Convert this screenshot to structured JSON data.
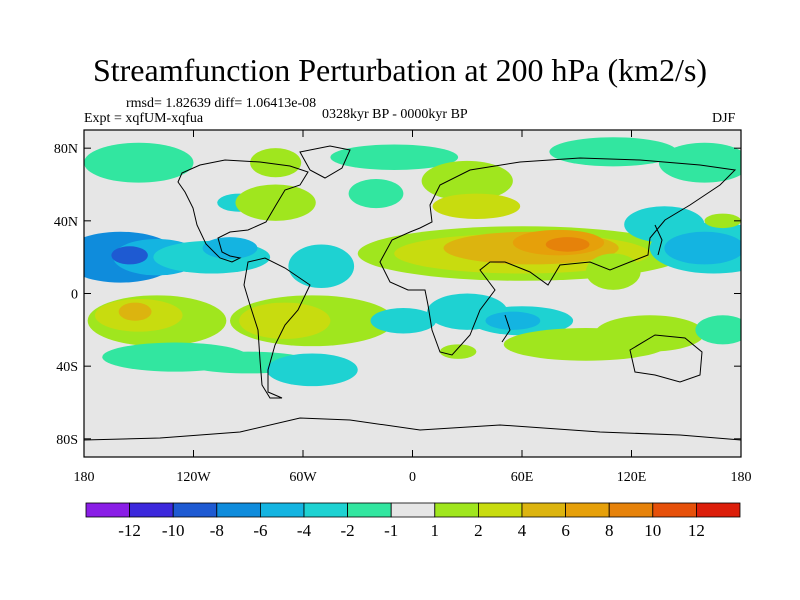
{
  "header": {
    "title": "Streamfunction Perturbation at 200 hPa (km2/s)",
    "stats": "rmsd= 1.82639 diff= 1.06413e-08",
    "experiment": "Expt = xqfUM-xqfua",
    "period": "0328kyr BP - 0000kyr BP",
    "season": "DJF"
  },
  "axes": {
    "y_ticks": [
      {
        "lat": 80,
        "label": "80N"
      },
      {
        "lat": 40,
        "label": "40N"
      },
      {
        "lat": 0,
        "label": "0"
      },
      {
        "lat": -40,
        "label": "40S"
      },
      {
        "lat": -80,
        "label": "80S"
      }
    ],
    "x_ticks": [
      {
        "lon": -180,
        "label": "180"
      },
      {
        "lon": -120,
        "label": "120W"
      },
      {
        "lon": -60,
        "label": "60W"
      },
      {
        "lon": 0,
        "label": "0"
      },
      {
        "lon": 60,
        "label": "60E"
      },
      {
        "lon": 120,
        "label": "120E"
      },
      {
        "lon": 180,
        "label": "180"
      }
    ],
    "lat_range": [
      -90,
      90
    ],
    "lon_range": [
      -180,
      180
    ]
  },
  "colorbar": {
    "colors": [
      "#8a1ee6",
      "#3c28dc",
      "#1e5ad2",
      "#0f8cdc",
      "#14b4e1",
      "#1ed2d2",
      "#32e6a0",
      "#e6e6e6",
      "#a0e61e",
      "#c8dc0f",
      "#dcb40f",
      "#e6a00a",
      "#e6820a",
      "#e6500a",
      "#dc1e0a"
    ],
    "labels": [
      "-12",
      "-10",
      "-8",
      "-6",
      "-4",
      "-2",
      "-1",
      "1",
      "2",
      "4",
      "6",
      "8",
      "10",
      "12"
    ]
  },
  "field": [
    {
      "lon": -160,
      "lat": 20,
      "rx": 32,
      "ry": 14,
      "level": 3
    },
    {
      "lon": -140,
      "lat": 20,
      "rx": 24,
      "ry": 10,
      "level": 4
    },
    {
      "lon": -155,
      "lat": 21,
      "rx": 10,
      "ry": 5,
      "level": 2
    },
    {
      "lon": -110,
      "lat": 20,
      "rx": 32,
      "ry": 9,
      "level": 5
    },
    {
      "lon": -100,
      "lat": 25,
      "rx": 15,
      "ry": 6,
      "level": 4
    },
    {
      "lon": -50,
      "lat": 15,
      "rx": 18,
      "ry": 12,
      "level": 5
    },
    {
      "lon": -140,
      "lat": -15,
      "rx": 38,
      "ry": 14,
      "level": 8
    },
    {
      "lon": -150,
      "lat": -12,
      "rx": 24,
      "ry": 9,
      "level": 9
    },
    {
      "lon": -152,
      "lat": -10,
      "rx": 9,
      "ry": 5,
      "level": 10
    },
    {
      "lon": -55,
      "lat": -15,
      "rx": 45,
      "ry": 14,
      "level": 8
    },
    {
      "lon": -70,
      "lat": -15,
      "rx": 25,
      "ry": 10,
      "level": 9
    },
    {
      "lon": -130,
      "lat": -35,
      "rx": 40,
      "ry": 8,
      "level": 6
    },
    {
      "lon": -90,
      "lat": -38,
      "rx": 35,
      "ry": 6,
      "level": 6
    },
    {
      "lon": -55,
      "lat": -42,
      "rx": 25,
      "ry": 9,
      "level": 5
    },
    {
      "lon": -95,
      "lat": 50,
      "rx": 12,
      "ry": 5,
      "level": 5
    },
    {
      "lon": -75,
      "lat": 50,
      "rx": 22,
      "ry": 10,
      "level": 8
    },
    {
      "lon": -75,
      "lat": 72,
      "rx": 14,
      "ry": 8,
      "level": 8
    },
    {
      "lon": -150,
      "lat": 72,
      "rx": 30,
      "ry": 11,
      "level": 6
    },
    {
      "lon": -20,
      "lat": 55,
      "rx": 15,
      "ry": 8,
      "level": 6
    },
    {
      "lon": -10,
      "lat": 75,
      "rx": 35,
      "ry": 7,
      "level": 6
    },
    {
      "lon": 110,
      "lat": 78,
      "rx": 35,
      "ry": 8,
      "level": 6
    },
    {
      "lon": 160,
      "lat": 72,
      "rx": 25,
      "ry": 11,
      "level": 6
    },
    {
      "lon": 30,
      "lat": 62,
      "rx": 25,
      "ry": 11,
      "level": 8
    },
    {
      "lon": 35,
      "lat": 48,
      "rx": 24,
      "ry": 7,
      "level": 9
    },
    {
      "lon": 60,
      "lat": 22,
      "rx": 90,
      "ry": 15,
      "level": 8
    },
    {
      "lon": 60,
      "lat": 22,
      "rx": 70,
      "ry": 11,
      "level": 9
    },
    {
      "lon": 65,
      "lat": 25,
      "rx": 48,
      "ry": 9,
      "level": 10
    },
    {
      "lon": 80,
      "lat": 28,
      "rx": 25,
      "ry": 7,
      "level": 11
    },
    {
      "lon": 85,
      "lat": 27,
      "rx": 12,
      "ry": 4,
      "level": 12
    },
    {
      "lon": 110,
      "lat": 12,
      "rx": 15,
      "ry": 10,
      "level": 8
    },
    {
      "lon": 138,
      "lat": 38,
      "rx": 22,
      "ry": 10,
      "level": 5
    },
    {
      "lon": 165,
      "lat": 25,
      "rx": 35,
      "ry": 14,
      "level": 5
    },
    {
      "lon": 160,
      "lat": 25,
      "rx": 22,
      "ry": 9,
      "level": 4
    },
    {
      "lon": 170,
      "lat": 40,
      "rx": 10,
      "ry": 4,
      "level": 8
    },
    {
      "lon": 30,
      "lat": -10,
      "rx": 22,
      "ry": 10,
      "level": 5
    },
    {
      "lon": 60,
      "lat": -15,
      "rx": 28,
      "ry": 8,
      "level": 5
    },
    {
      "lon": 55,
      "lat": -15,
      "rx": 15,
      "ry": 5,
      "level": 4
    },
    {
      "lon": 95,
      "lat": -28,
      "rx": 45,
      "ry": 9,
      "level": 8
    },
    {
      "lon": 25,
      "lat": -32,
      "rx": 10,
      "ry": 4,
      "level": 8
    },
    {
      "lon": 130,
      "lat": -22,
      "rx": 30,
      "ry": 10,
      "level": 8
    },
    {
      "lon": 170,
      "lat": -20,
      "rx": 15,
      "ry": 8,
      "level": 6
    },
    {
      "lon": -5,
      "lat": -15,
      "rx": 18,
      "ry": 7,
      "level": 5
    }
  ]
}
